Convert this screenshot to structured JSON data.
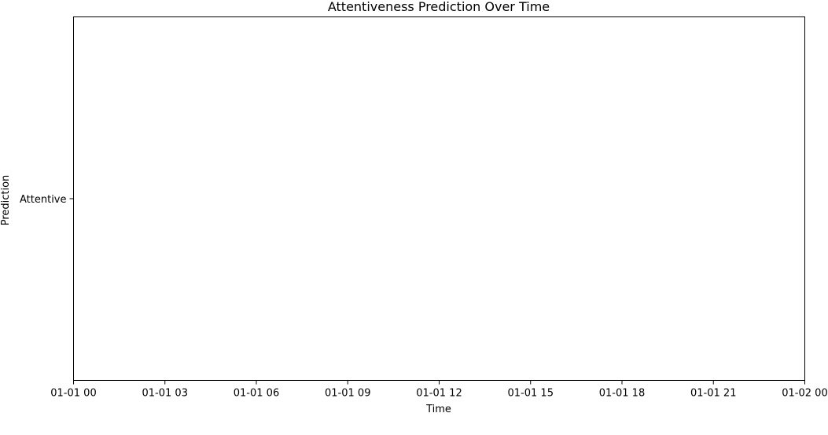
{
  "chart_data": {
    "type": "line",
    "title": "Attentiveness Prediction Over Time",
    "xlabel": "Time",
    "ylabel": "Prediction",
    "x_ticks": [
      "01-01 00",
      "01-01 03",
      "01-01 06",
      "01-01 09",
      "01-01 12",
      "01-01 15",
      "01-01 18",
      "01-01 21",
      "01-02 00"
    ],
    "y_ticks": [
      "Attentive"
    ],
    "series": [],
    "grid": false
  }
}
